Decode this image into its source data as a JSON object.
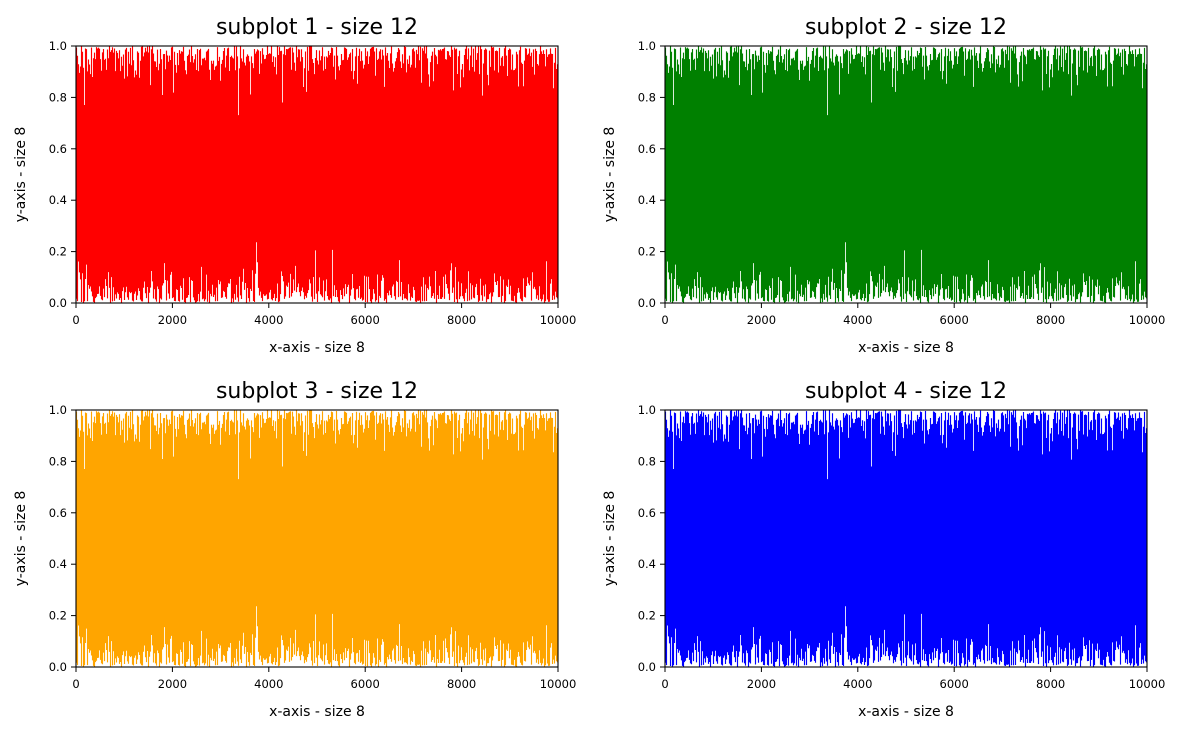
{
  "figure": {
    "background": "#ffffff"
  },
  "chart_data": [
    {
      "type": "area",
      "title": "subplot 1 - size 12",
      "xlabel": "x-axis - size 8",
      "ylabel": "y-axis - size 8",
      "xlim": [
        0,
        10000
      ],
      "ylim": [
        0,
        1.0
      ],
      "xticks": [
        0,
        2000,
        4000,
        6000,
        8000,
        10000
      ],
      "xtick_labels": [
        "0",
        "2000",
        "4000",
        "6000",
        "8000",
        "10000"
      ],
      "yticks": [
        0.0,
        0.2,
        0.4,
        0.6,
        0.8,
        1.0
      ],
      "ytick_labels": [
        "0.0",
        "0.2",
        "0.4",
        "0.6",
        "0.8",
        "1.0"
      ],
      "color": "#ff0000",
      "grid": false,
      "series": [
        {
          "description": "10000 uniformly random values in [0, 1] drawn as vertical lines; fills nearly the whole axes",
          "n_points": 10000,
          "min": 0.0,
          "max": 1.0
        }
      ]
    },
    {
      "type": "area",
      "title": "subplot 2 - size 12",
      "xlabel": "x-axis - size 8",
      "ylabel": "y-axis - size 8",
      "xlim": [
        0,
        10000
      ],
      "ylim": [
        0,
        1.0
      ],
      "xticks": [
        0,
        2000,
        4000,
        6000,
        8000,
        10000
      ],
      "xtick_labels": [
        "0",
        "2000",
        "4000",
        "6000",
        "8000",
        "10000"
      ],
      "yticks": [
        0.0,
        0.2,
        0.4,
        0.6,
        0.8,
        1.0
      ],
      "ytick_labels": [
        "0.0",
        "0.2",
        "0.4",
        "0.6",
        "0.8",
        "1.0"
      ],
      "color": "#008000",
      "grid": false,
      "series": [
        {
          "description": "10000 uniformly random values in [0, 1] drawn as vertical lines; fills nearly the whole axes",
          "n_points": 10000,
          "min": 0.0,
          "max": 1.0
        }
      ]
    },
    {
      "type": "area",
      "title": "subplot 3 - size 12",
      "xlabel": "x-axis - size 8",
      "ylabel": "y-axis - size 8",
      "xlim": [
        0,
        10000
      ],
      "ylim": [
        0,
        1.0
      ],
      "xticks": [
        0,
        2000,
        4000,
        6000,
        8000,
        10000
      ],
      "xtick_labels": [
        "0",
        "2000",
        "4000",
        "6000",
        "8000",
        "10000"
      ],
      "yticks": [
        0.0,
        0.2,
        0.4,
        0.6,
        0.8,
        1.0
      ],
      "ytick_labels": [
        "0.0",
        "0.2",
        "0.4",
        "0.6",
        "0.8",
        "1.0"
      ],
      "color": "#ffa500",
      "grid": false,
      "series": [
        {
          "description": "10000 uniformly random values in [0, 1] drawn as vertical lines; fills nearly the whole axes",
          "n_points": 10000,
          "min": 0.0,
          "max": 1.0
        }
      ]
    },
    {
      "type": "area",
      "title": "subplot 4 - size 12",
      "xlabel": "x-axis - size 8",
      "ylabel": "y-axis - size 8",
      "xlim": [
        0,
        10000
      ],
      "ylim": [
        0,
        1.0
      ],
      "xticks": [
        0,
        2000,
        4000,
        6000,
        8000,
        10000
      ],
      "xtick_labels": [
        "0",
        "2000",
        "4000",
        "6000",
        "8000",
        "10000"
      ],
      "yticks": [
        0.0,
        0.2,
        0.4,
        0.6,
        0.8,
        1.0
      ],
      "ytick_labels": [
        "0.0",
        "0.2",
        "0.4",
        "0.6",
        "0.8",
        "1.0"
      ],
      "color": "#0000ff",
      "grid": false,
      "series": [
        {
          "description": "10000 uniformly random values in [0, 1] drawn as vertical lines; fills nearly the whole axes",
          "n_points": 10000,
          "min": 0.0,
          "max": 1.0
        }
      ]
    }
  ]
}
